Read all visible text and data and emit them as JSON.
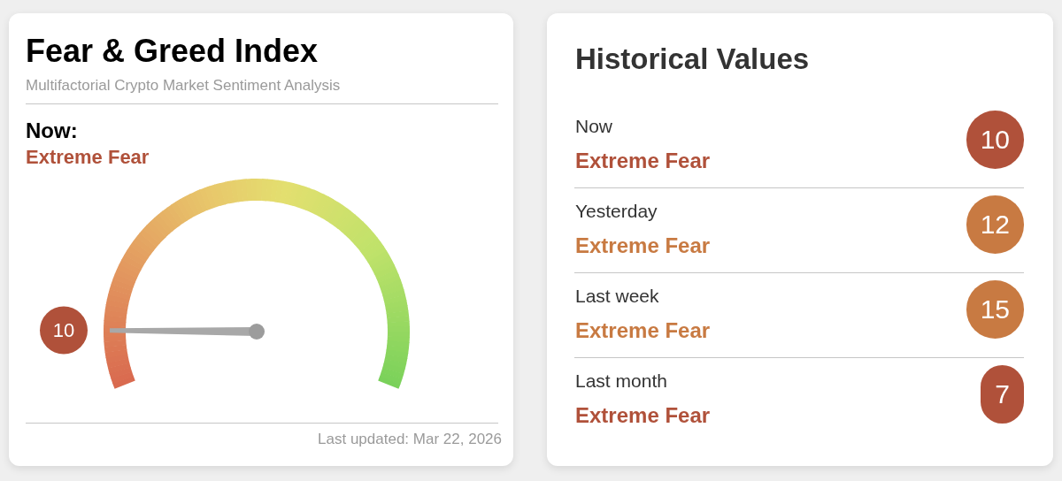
{
  "chart_data": [
    {
      "type": "other",
      "title": "Fear & Greed Index",
      "subtitle": "Multifactorial Crypto Market Sentiment Analysis",
      "values": [
        10
      ],
      "colors": [
        "#b0513a"
      ],
      "data_labels": true,
      "annotations": [
        "Now:",
        "Extreme Fear",
        "Last updated: Mar 22, 2026"
      ]
    },
    {
      "type": "other",
      "title": "Historical Values",
      "categories": [
        "Now",
        "Yesterday",
        "Last week",
        "Last month"
      ],
      "values": [
        10,
        12,
        15,
        7
      ],
      "colors": [
        "#b0513a",
        "#c87a42",
        "#c87a42",
        "#b0513a"
      ],
      "data_labels": true,
      "annotations": [
        {
          "text": "Extreme Fear",
          "x": "Now"
        },
        {
          "text": "Extreme Fear",
          "x": "Yesterday"
        },
        {
          "text": "Extreme Fear",
          "x": "Last week"
        },
        {
          "text": "Extreme Fear",
          "x": "Last month"
        }
      ]
    }
  ]
}
